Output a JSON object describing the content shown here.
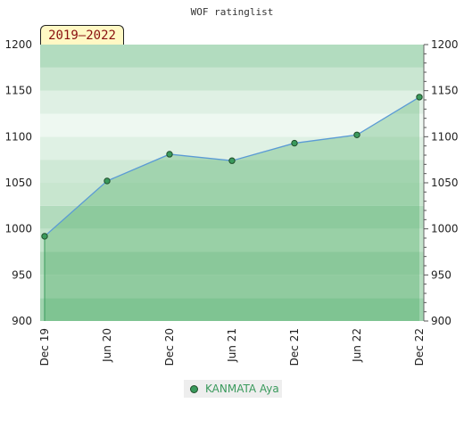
{
  "chart_data": {
    "type": "line",
    "title": "WOF ratinglist",
    "badge": "2019–2022",
    "xlabel": "",
    "ylabel": "",
    "categories": [
      "Dec 19",
      "Jun 20",
      "Dec 20",
      "Jun 21",
      "Dec 21",
      "Jun 22",
      "Dec 22"
    ],
    "ylim": [
      900,
      1200
    ],
    "yticks": [
      900,
      950,
      1000,
      1050,
      1100,
      1150,
      1200
    ],
    "series": [
      {
        "name": "KANMATA Aya",
        "values": [
          992,
          1052,
          1081,
          1074,
          1093,
          1102,
          1143
        ]
      }
    ],
    "legend_position": "bottom-center",
    "grid": true,
    "colors": {
      "line": "#5b9bd5",
      "marker": "#3a9a5c",
      "marker_stroke": "#1f4d2a",
      "area": "#2e9e4a",
      "band_light": "#b5dec2",
      "band_dark": "#cde9d5"
    }
  }
}
